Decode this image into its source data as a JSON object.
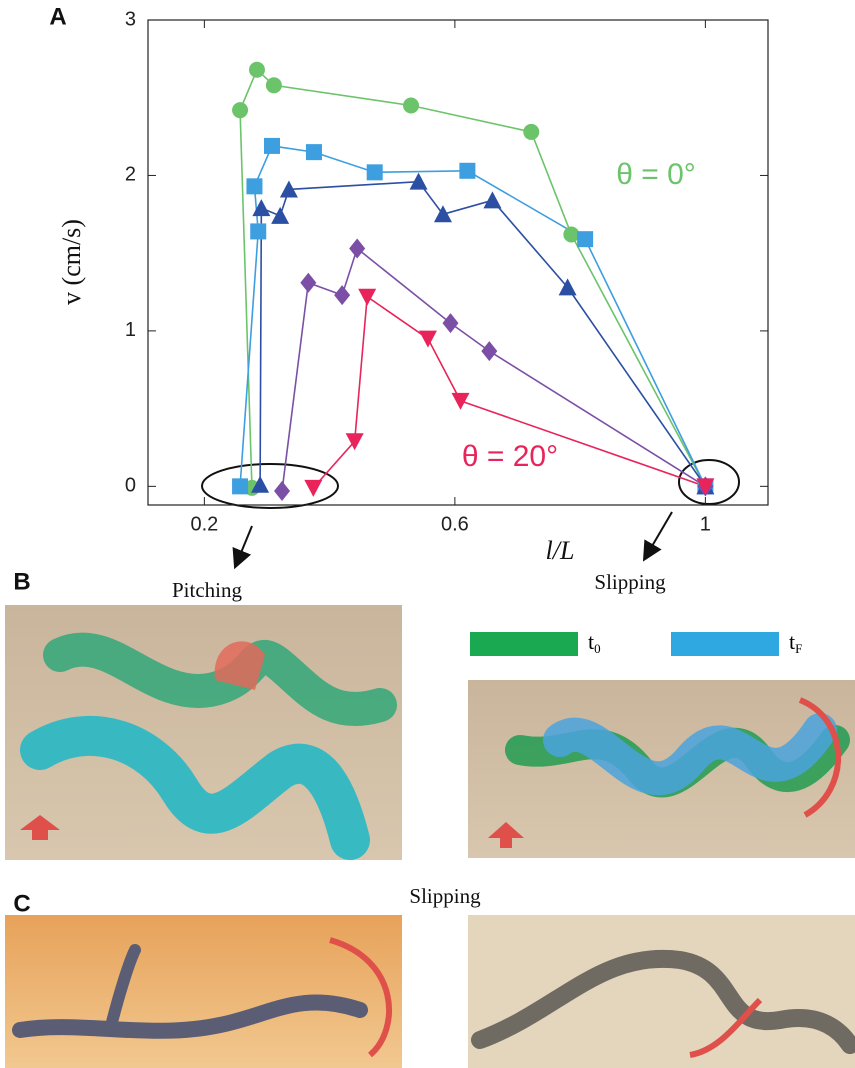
{
  "panel_labels": [
    "A",
    "B",
    "C"
  ],
  "captions": [
    "Pitching",
    "Slipping",
    "Slipping"
  ],
  "legend": [
    {
      "label": "t",
      "sub": "0",
      "color": "#1aa850"
    },
    {
      "label": "t",
      "sub": "F",
      "color": "#2fa8e2"
    }
  ],
  "chart_data": {
    "type": "line",
    "xlabel": "l/L",
    "ylabel": "v (cm/s)",
    "annotations": [
      "θ = 0°",
      "θ = 20°"
    ],
    "xlim": [
      0.11,
      1.1
    ],
    "ylim": [
      -0.12,
      3
    ],
    "xticks": [
      0.2,
      0.6,
      1
    ],
    "yticks": [
      0,
      1,
      2,
      3
    ],
    "series": [
      {
        "color": "#6cc46a",
        "marker": "circle",
        "x": [
          0.276,
          0.257,
          0.284,
          0.311,
          0.53,
          0.722,
          0.786,
          1.0
        ],
        "values": [
          -0.01,
          2.42,
          2.68,
          2.58,
          2.45,
          2.28,
          1.62,
          0
        ]
      },
      {
        "color": "#3d9ee0",
        "marker": "square",
        "x": [
          0.257,
          0.286,
          0.28,
          0.308,
          0.375,
          0.472,
          0.62,
          0.808,
          1.0
        ],
        "values": [
          0,
          1.64,
          1.93,
          2.19,
          2.15,
          2.02,
          2.03,
          1.59,
          0
        ]
      },
      {
        "color": "#2b4fa3",
        "marker": "triangle-up",
        "x": [
          0.289,
          0.291,
          0.321,
          0.335,
          0.542,
          0.581,
          0.66,
          0.78,
          1.0
        ],
        "values": [
          0.01,
          1.79,
          1.74,
          1.91,
          1.96,
          1.75,
          1.84,
          1.28,
          0
        ]
      },
      {
        "color": "#7b4fa6",
        "marker": "diamond",
        "x": [
          0.324,
          0.366,
          0.42,
          0.444,
          0.593,
          0.655,
          1.0
        ],
        "values": [
          -0.03,
          1.31,
          1.23,
          1.53,
          1.05,
          0.87,
          0
        ]
      },
      {
        "color": "#e8245a",
        "marker": "triangle-down",
        "x": [
          0.374,
          0.44,
          0.46,
          0.557,
          0.609,
          1.0
        ],
        "values": [
          -0.01,
          0.29,
          1.22,
          0.95,
          0.55,
          0
        ]
      }
    ]
  }
}
